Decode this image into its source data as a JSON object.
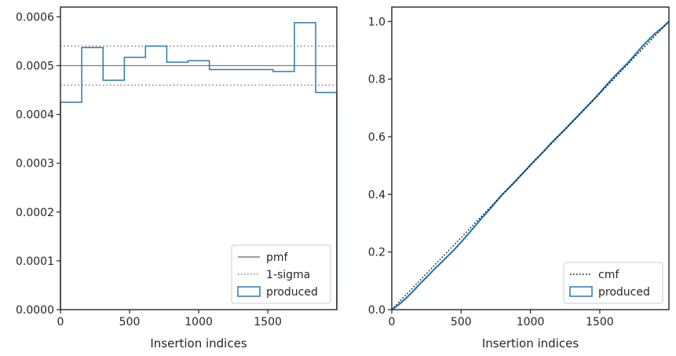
{
  "colors": {
    "produced": "#2a7bb0",
    "pmf": "#7f7f7f",
    "sigma": "#7f7f7f",
    "cmf": "#000000",
    "axes": "#262626"
  },
  "chart_data": [
    {
      "type": "histogram-step",
      "xlabel": "Insertion indices",
      "ylabel": "",
      "xlim": [
        0,
        1999
      ],
      "ylim": [
        0,
        0.00062
      ],
      "xticks": [
        0,
        500,
        1000,
        1500
      ],
      "xtick_labels": [
        "0",
        "500",
        "1000",
        "1500"
      ],
      "yticks": [
        0,
        0.0001,
        0.0002,
        0.0003,
        0.0004,
        0.0005,
        0.0006
      ],
      "ytick_labels": [
        "0.0000",
        "0.0001",
        "0.0002",
        "0.0003",
        "0.0004",
        "0.0005",
        "0.0006"
      ],
      "bin_edges": [
        0,
        154,
        308,
        462,
        615,
        769,
        923,
        1077,
        1230,
        1384,
        1538,
        1692,
        1846,
        1999
      ],
      "produced_values": [
        0.000425,
        0.000537,
        0.00047,
        0.000517,
        0.00054,
        0.000507,
        0.00051,
        0.000492,
        0.000492,
        0.000492,
        0.000488,
        0.000588,
        0.000445
      ],
      "pmf": 0.0005,
      "sigma_band": [
        0.00046,
        0.00054
      ],
      "legend": {
        "location": "lower right",
        "entries": [
          {
            "label": "pmf",
            "style": "solid-line"
          },
          {
            "label": "1-sigma",
            "style": "dotted-line"
          },
          {
            "label": "produced",
            "style": "step-box"
          }
        ]
      }
    },
    {
      "type": "line",
      "xlabel": "Insertion indices",
      "ylabel": "",
      "xlim": [
        0,
        1999
      ],
      "ylim": [
        0,
        1.05
      ],
      "xticks": [
        0,
        500,
        1000,
        1500
      ],
      "xtick_labels": [
        "0",
        "500",
        "1000",
        "1500"
      ],
      "yticks": [
        0,
        0.2,
        0.4,
        0.6,
        0.8,
        1.0
      ],
      "ytick_labels": [
        "0.0",
        "0.2",
        "0.4",
        "0.6",
        "0.8",
        "1.0"
      ],
      "cmf": {
        "x": [
          0,
          1999
        ],
        "y": [
          0,
          1.0
        ]
      },
      "produced": {
        "x": [
          0,
          50,
          100,
          150,
          200,
          250,
          300,
          350,
          400,
          450,
          500,
          550,
          600,
          650,
          700,
          750,
          800,
          850,
          900,
          950,
          1000,
          1050,
          1100,
          1150,
          1200,
          1250,
          1300,
          1350,
          1400,
          1450,
          1500,
          1550,
          1600,
          1650,
          1700,
          1750,
          1800,
          1850,
          1900,
          1950,
          1999
        ],
        "y": [
          0,
          0.017,
          0.038,
          0.062,
          0.088,
          0.112,
          0.137,
          0.16,
          0.184,
          0.208,
          0.234,
          0.262,
          0.29,
          0.318,
          0.345,
          0.373,
          0.401,
          0.425,
          0.45,
          0.476,
          0.502,
          0.527,
          0.552,
          0.578,
          0.602,
          0.626,
          0.651,
          0.676,
          0.701,
          0.726,
          0.752,
          0.78,
          0.806,
          0.831,
          0.855,
          0.882,
          0.91,
          0.935,
          0.958,
          0.978,
          1.0
        ]
      },
      "legend": {
        "location": "lower right",
        "entries": [
          {
            "label": "cmf",
            "style": "dotted-line"
          },
          {
            "label": "produced",
            "style": "step-box"
          }
        ]
      }
    }
  ]
}
